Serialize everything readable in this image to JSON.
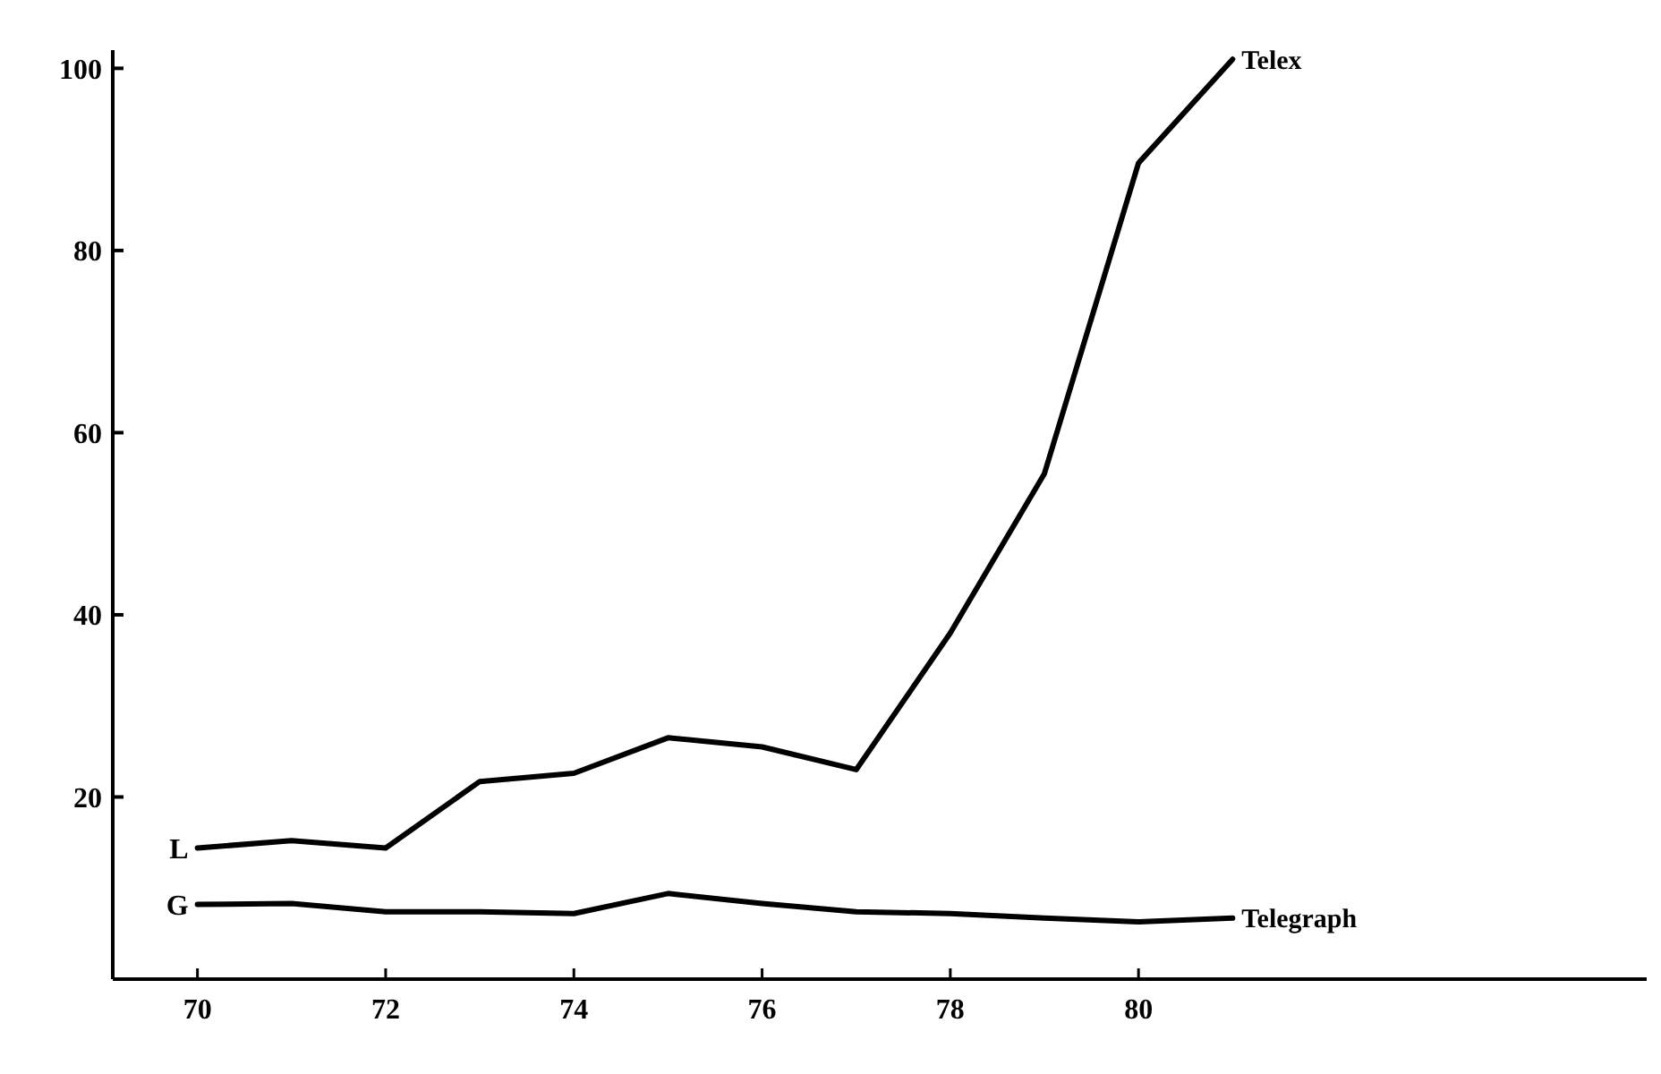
{
  "chart_data": {
    "type": "line",
    "x": [
      70,
      71,
      72,
      73,
      74,
      75,
      76,
      77,
      78,
      79,
      80,
      81
    ],
    "series": [
      {
        "name": "Telex",
        "color": "#000000",
        "values": [
          14.4,
          15.2,
          14.4,
          21.7,
          22.6,
          26.5,
          25.5,
          23,
          38,
          55.5,
          89.6,
          101
        ]
      },
      {
        "name": "Telegraph",
        "color": "#000000",
        "values": [
          8.2,
          8.3,
          7.4,
          7.4,
          7.2,
          9.4,
          8.3,
          7.4,
          7.2,
          6.7,
          6.3,
          6.7
        ]
      }
    ],
    "xlim": [
      69.1,
      85.4
    ],
    "ylim": [
      0,
      102
    ],
    "xticks": [
      70,
      72,
      74,
      76,
      78,
      80
    ],
    "yticks": [
      20,
      40,
      60,
      80,
      100
    ],
    "annotations": [
      {
        "text": "L",
        "x": 70,
        "y": 14.4
      },
      {
        "text": "G",
        "x": 70,
        "y": 8.2
      }
    ],
    "grid": false,
    "marker": "none",
    "line_style": "solid"
  }
}
